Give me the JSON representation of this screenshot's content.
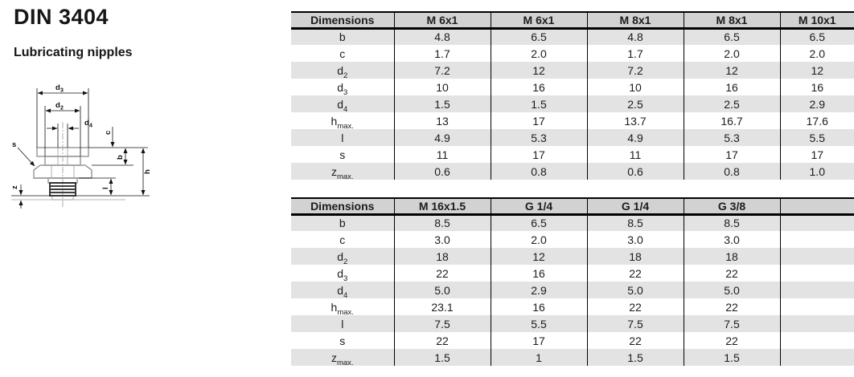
{
  "page": {
    "title": "DIN 3404",
    "subtitle": "Lubricating nipples"
  },
  "drawing": {
    "labels": {
      "d3": {
        "base": "d",
        "sub": "3"
      },
      "d2": {
        "base": "d",
        "sub": "2"
      },
      "d4": {
        "base": "d",
        "sub": "4"
      },
      "c": "c",
      "b": "b",
      "h": "h",
      "l": "l",
      "s": "s",
      "z": "z"
    }
  },
  "tables": [
    {
      "header": [
        "Dimensions",
        "M 6x1",
        "M 6x1",
        "M 8x1",
        "M 8x1",
        "M 10x1"
      ],
      "rows": [
        {
          "label": {
            "base": "b",
            "sub": ""
          },
          "values": [
            "4.8",
            "6.5",
            "4.8",
            "6.5",
            "6.5"
          ]
        },
        {
          "label": {
            "base": "c",
            "sub": ""
          },
          "values": [
            "1.7",
            "2.0",
            "1.7",
            "2.0",
            "2.0"
          ]
        },
        {
          "label": {
            "base": "d",
            "sub": "2"
          },
          "values": [
            "7.2",
            "12",
            "7.2",
            "12",
            "12"
          ]
        },
        {
          "label": {
            "base": "d",
            "sub": "3"
          },
          "values": [
            "10",
            "16",
            "10",
            "16",
            "16"
          ]
        },
        {
          "label": {
            "base": "d",
            "sub": "4"
          },
          "values": [
            "1.5",
            "1.5",
            "2.5",
            "2.5",
            "2.9"
          ]
        },
        {
          "label": {
            "base": "h",
            "sub": "max."
          },
          "values": [
            "13",
            "17",
            "13.7",
            "16.7",
            "17.6"
          ]
        },
        {
          "label": {
            "base": "l",
            "sub": ""
          },
          "values": [
            "4.9",
            "5.3",
            "4.9",
            "5.3",
            "5.5"
          ]
        },
        {
          "label": {
            "base": "s",
            "sub": ""
          },
          "values": [
            "11",
            "17",
            "11",
            "17",
            "17"
          ]
        },
        {
          "label": {
            "base": "z",
            "sub": "max."
          },
          "values": [
            "0.6",
            "0.8",
            "0.6",
            "0.8",
            "1.0"
          ]
        }
      ]
    },
    {
      "header": [
        "Dimensions",
        "M 16x1.5",
        "G 1/4",
        "G 1/4",
        "G 3/8",
        ""
      ],
      "rows": [
        {
          "label": {
            "base": "b",
            "sub": ""
          },
          "values": [
            "8.5",
            "6.5",
            "8.5",
            "8.5",
            ""
          ]
        },
        {
          "label": {
            "base": "c",
            "sub": ""
          },
          "values": [
            "3.0",
            "2.0",
            "3.0",
            "3.0",
            ""
          ]
        },
        {
          "label": {
            "base": "d",
            "sub": "2"
          },
          "values": [
            "18",
            "12",
            "18",
            "18",
            ""
          ]
        },
        {
          "label": {
            "base": "d",
            "sub": "3"
          },
          "values": [
            "22",
            "16",
            "22",
            "22",
            ""
          ]
        },
        {
          "label": {
            "base": "d",
            "sub": "4"
          },
          "values": [
            "5.0",
            "2.9",
            "5.0",
            "5.0",
            ""
          ]
        },
        {
          "label": {
            "base": "h",
            "sub": "max."
          },
          "values": [
            "23.1",
            "16",
            "22",
            "22",
            ""
          ]
        },
        {
          "label": {
            "base": "l",
            "sub": ""
          },
          "values": [
            "7.5",
            "5.5",
            "7.5",
            "7.5",
            ""
          ]
        },
        {
          "label": {
            "base": "s",
            "sub": ""
          },
          "values": [
            "22",
            "17",
            "22",
            "22",
            ""
          ]
        },
        {
          "label": {
            "base": "z",
            "sub": "max."
          },
          "values": [
            "1.5",
            "1",
            "1.5",
            "1.5",
            ""
          ]
        }
      ]
    }
  ]
}
